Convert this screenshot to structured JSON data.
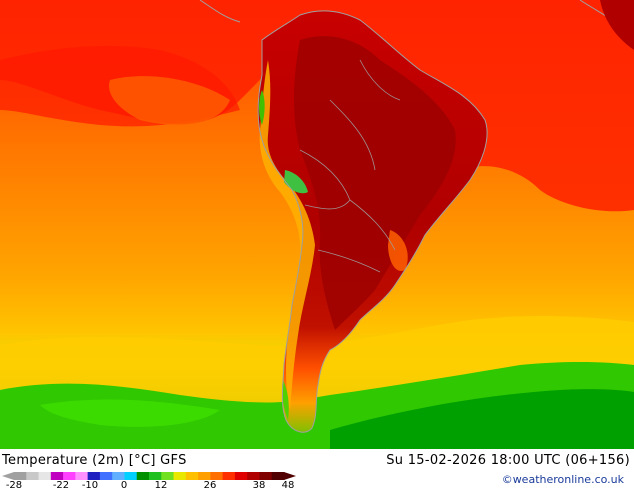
{
  "map": {
    "title": "Temperature (2m) [°C] GFS",
    "run_info": "Su 15-02-2026 18:00 UTC (06+156)",
    "credit": "©weatheronline.co.uk",
    "legend": {
      "ticks": [
        "-28",
        "-22",
        "-10",
        "0",
        "12",
        "26",
        "38",
        "48"
      ],
      "colors": [
        "#a0a0a0",
        "#c8c8c8",
        "#e6e6e6",
        "#c000c0",
        "#ff40ff",
        "#ff90ff",
        "#2020c0",
        "#4070ff",
        "#60b0ff",
        "#00d0ff",
        "#009000",
        "#20c020",
        "#70e020",
        "#e8e800",
        "#ffc000",
        "#ffa000",
        "#ff7000",
        "#ff3000",
        "#e00000",
        "#b00000",
        "#800000",
        "#500000"
      ]
    },
    "colors": {
      "warm": "#ff2a00",
      "hot": "#d40000",
      "very_hot": "#a80000",
      "orange": "#ff7a00",
      "light_orange": "#ffa800",
      "yellow": "#ffd400",
      "green": "#2ed000",
      "dark_green": "#00a800",
      "coast": "#a0a0a0"
    }
  }
}
